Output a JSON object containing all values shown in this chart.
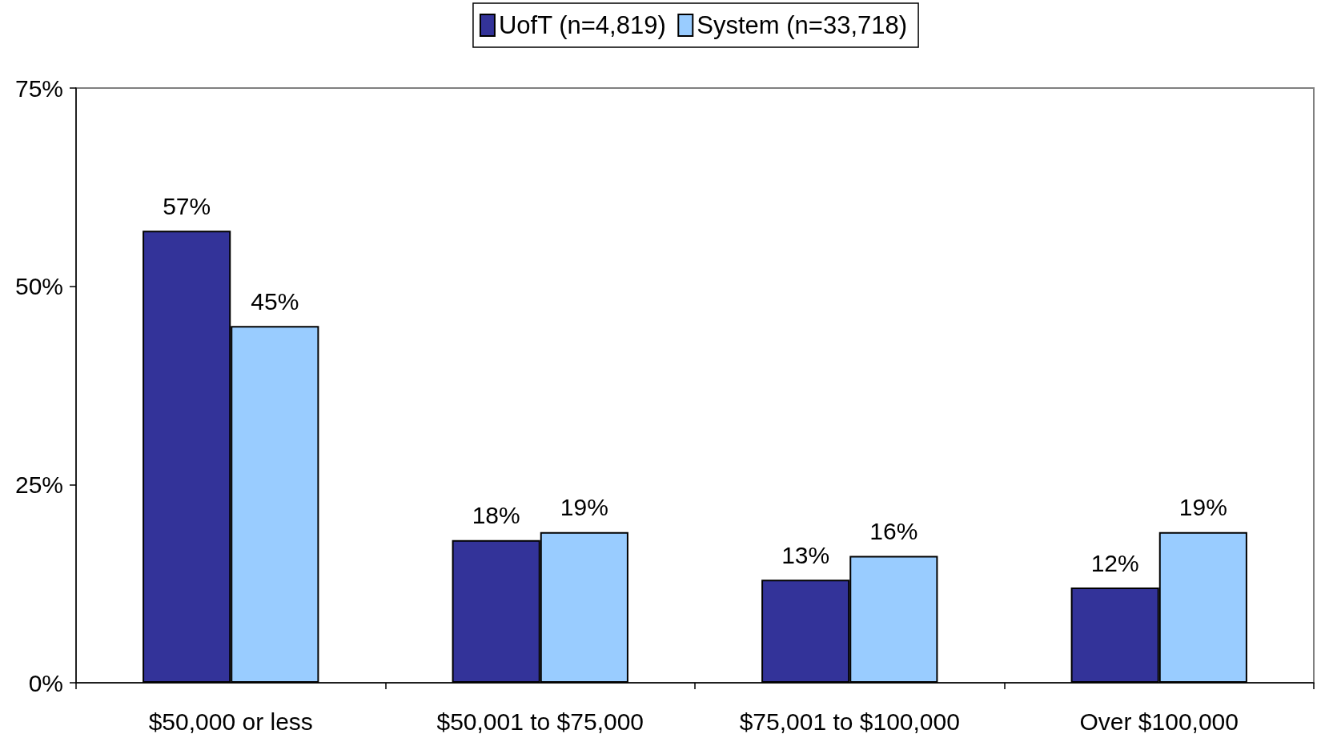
{
  "chart_data": {
    "type": "bar",
    "categories": [
      "$50,000 or less",
      "$50,001 to $75,000",
      "$75,001 to $100,000",
      "Over $100,000"
    ],
    "series": [
      {
        "name": "UofT (n=4,819)",
        "color": "#333399",
        "values": [
          57,
          18,
          13,
          12
        ],
        "value_labels": [
          "57%",
          "18%",
          "13%",
          "12%"
        ]
      },
      {
        "name": "System (n=33,718)",
        "color": "#99ccff",
        "values": [
          45,
          19,
          16,
          19
        ],
        "value_labels": [
          "45%",
          "19%",
          "16%",
          "19%"
        ]
      }
    ],
    "ylim": [
      0,
      75
    ],
    "yticks": [
      {
        "value": 0,
        "label": "0%"
      },
      {
        "value": 25,
        "label": "25%"
      },
      {
        "value": 50,
        "label": "50%"
      },
      {
        "value": 75,
        "label": "75%"
      }
    ],
    "legend": "top"
  }
}
